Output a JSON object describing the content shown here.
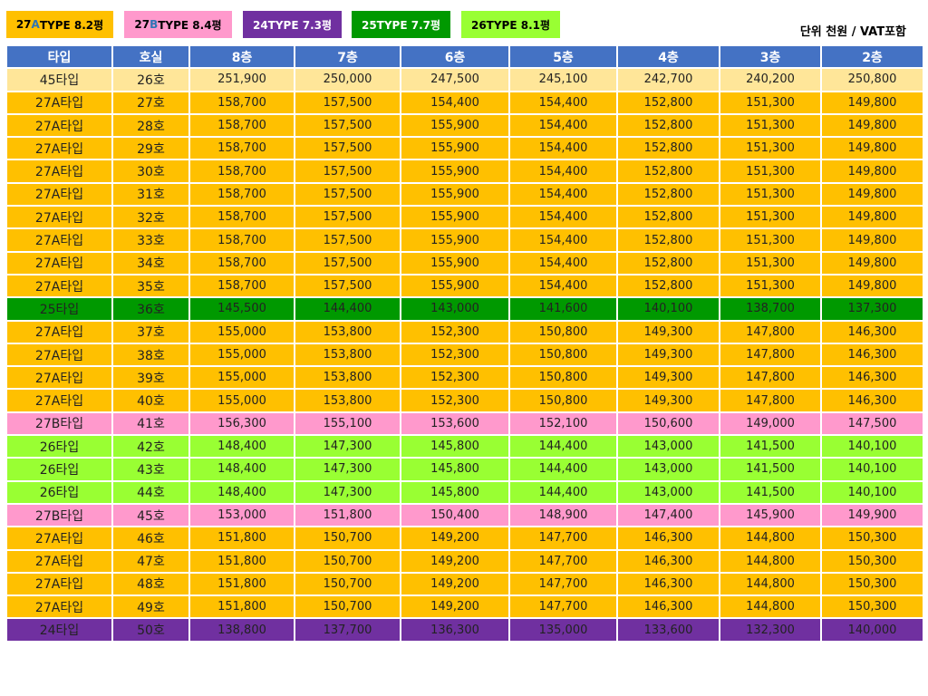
{
  "legend": [
    {
      "pre": "27",
      "accent": "A",
      "post": "TYPE 8.2평",
      "bg": "#ffc000",
      "accent_color": "#2e75b6"
    },
    {
      "pre": "27",
      "accent": "B",
      "post": "TYPE 8.4평",
      "bg": "#ff99cc",
      "accent_color": "#2e75b6"
    },
    {
      "pre": "",
      "accent": "",
      "post": "24TYPE 7.3평",
      "bg": "#7030a0",
      "accent_color": "#ffffff"
    },
    {
      "pre": "",
      "accent": "",
      "post": "25TYPE 7.7평",
      "bg": "#009900",
      "accent_color": "#ffffff"
    },
    {
      "pre": "",
      "accent": "",
      "post": "26TYPE 8.1평",
      "bg": "#99ff33",
      "accent_color": "#000000"
    }
  ],
  "unit_note": "단위 천원 / VAT포함",
  "columns": [
    "타입",
    "호실",
    "8층",
    "7층",
    "6층",
    "5층",
    "4층",
    "3층",
    "2층"
  ],
  "type_colors": {
    "45": "#ffe699",
    "27A": "#ffc000",
    "25": "#009900",
    "27B": "#ff99cc",
    "26": "#99ff33",
    "24": "#7030a0"
  },
  "rows": [
    {
      "kind": "45",
      "cells": [
        "45타입",
        "26호",
        "251,900",
        "250,000",
        "247,500",
        "245,100",
        "242,700",
        "240,200",
        "250,800"
      ]
    },
    {
      "kind": "27A",
      "cells": [
        "27A타입",
        "27호",
        "158,700",
        "157,500",
        "154,400",
        "154,400",
        "152,800",
        "151,300",
        "149,800"
      ]
    },
    {
      "kind": "27A",
      "cells": [
        "27A타입",
        "28호",
        "158,700",
        "157,500",
        "155,900",
        "154,400",
        "152,800",
        "151,300",
        "149,800"
      ]
    },
    {
      "kind": "27A",
      "cells": [
        "27A타입",
        "29호",
        "158,700",
        "157,500",
        "155,900",
        "154,400",
        "152,800",
        "151,300",
        "149,800"
      ]
    },
    {
      "kind": "27A",
      "cells": [
        "27A타입",
        "30호",
        "158,700",
        "157,500",
        "155,900",
        "154,400",
        "152,800",
        "151,300",
        "149,800"
      ]
    },
    {
      "kind": "27A",
      "cells": [
        "27A타입",
        "31호",
        "158,700",
        "157,500",
        "155,900",
        "154,400",
        "152,800",
        "151,300",
        "149,800"
      ]
    },
    {
      "kind": "27A",
      "cells": [
        "27A타입",
        "32호",
        "158,700",
        "157,500",
        "155,900",
        "154,400",
        "152,800",
        "151,300",
        "149,800"
      ]
    },
    {
      "kind": "27A",
      "cells": [
        "27A타입",
        "33호",
        "158,700",
        "157,500",
        "155,900",
        "154,400",
        "152,800",
        "151,300",
        "149,800"
      ]
    },
    {
      "kind": "27A",
      "cells": [
        "27A타입",
        "34호",
        "158,700",
        "157,500",
        "155,900",
        "154,400",
        "152,800",
        "151,300",
        "149,800"
      ]
    },
    {
      "kind": "27A",
      "cells": [
        "27A타입",
        "35호",
        "158,700",
        "157,500",
        "155,900",
        "154,400",
        "152,800",
        "151,300",
        "149,800"
      ]
    },
    {
      "kind": "25",
      "cells": [
        "25타입",
        "36호",
        "145,500",
        "144,400",
        "143,000",
        "141,600",
        "140,100",
        "138,700",
        "137,300"
      ]
    },
    {
      "kind": "27A",
      "cells": [
        "27A타입",
        "37호",
        "155,000",
        "153,800",
        "152,300",
        "150,800",
        "149,300",
        "147,800",
        "146,300"
      ]
    },
    {
      "kind": "27A",
      "cells": [
        "27A타입",
        "38호",
        "155,000",
        "153,800",
        "152,300",
        "150,800",
        "149,300",
        "147,800",
        "146,300"
      ]
    },
    {
      "kind": "27A",
      "cells": [
        "27A타입",
        "39호",
        "155,000",
        "153,800",
        "152,300",
        "150,800",
        "149,300",
        "147,800",
        "146,300"
      ]
    },
    {
      "kind": "27A",
      "cells": [
        "27A타입",
        "40호",
        "155,000",
        "153,800",
        "152,300",
        "150,800",
        "149,300",
        "147,800",
        "146,300"
      ]
    },
    {
      "kind": "27B",
      "cells": [
        "27B타입",
        "41호",
        "156,300",
        "155,100",
        "153,600",
        "152,100",
        "150,600",
        "149,000",
        "147,500"
      ]
    },
    {
      "kind": "26",
      "cells": [
        "26타입",
        "42호",
        "148,400",
        "147,300",
        "145,800",
        "144,400",
        "143,000",
        "141,500",
        "140,100"
      ]
    },
    {
      "kind": "26",
      "cells": [
        "26타입",
        "43호",
        "148,400",
        "147,300",
        "145,800",
        "144,400",
        "143,000",
        "141,500",
        "140,100"
      ]
    },
    {
      "kind": "26",
      "cells": [
        "26타입",
        "44호",
        "148,400",
        "147,300",
        "145,800",
        "144,400",
        "143,000",
        "141,500",
        "140,100"
      ]
    },
    {
      "kind": "27B",
      "cells": [
        "27B타입",
        "45호",
        "153,000",
        "151,800",
        "150,400",
        "148,900",
        "147,400",
        "145,900",
        "149,900"
      ]
    },
    {
      "kind": "27A",
      "cells": [
        "27A타입",
        "46호",
        "151,800",
        "150,700",
        "149,200",
        "147,700",
        "146,300",
        "144,800",
        "150,300"
      ]
    },
    {
      "kind": "27A",
      "cells": [
        "27A타입",
        "47호",
        "151,800",
        "150,700",
        "149,200",
        "147,700",
        "146,300",
        "144,800",
        "150,300"
      ]
    },
    {
      "kind": "27A",
      "cells": [
        "27A타입",
        "48호",
        "151,800",
        "150,700",
        "149,200",
        "147,700",
        "146,300",
        "144,800",
        "150,300"
      ]
    },
    {
      "kind": "27A",
      "cells": [
        "27A타입",
        "49호",
        "151,800",
        "150,700",
        "149,200",
        "147,700",
        "146,300",
        "144,800",
        "150,300"
      ]
    },
    {
      "kind": "24",
      "cells": [
        "24타입",
        "50호",
        "138,800",
        "137,700",
        "136,300",
        "135,000",
        "133,600",
        "132,300",
        "140,000"
      ]
    }
  ]
}
